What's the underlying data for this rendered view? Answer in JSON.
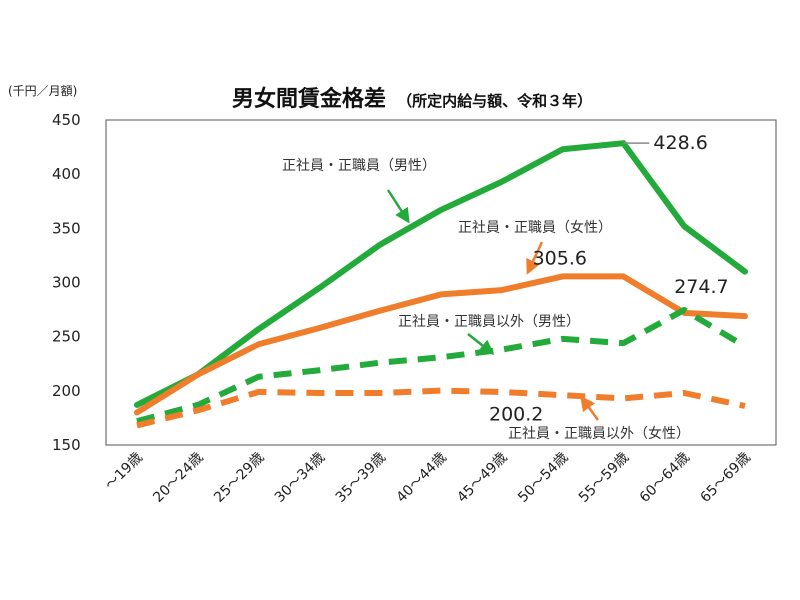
{
  "chart_data": {
    "type": "line",
    "title": "男女間賃金格差",
    "subtitle": "（所定内給与額、令和３年）",
    "ylabel": "(千円／月額)",
    "ylim": [
      150,
      450
    ],
    "yticks": [
      150,
      200,
      250,
      300,
      350,
      400,
      450
    ],
    "grid": false,
    "categories": [
      "～19歳",
      "20～24歳",
      "25～29歳",
      "30～34歳",
      "35～39歳",
      "40～44歳",
      "45～49歳",
      "50～54歳",
      "55～59歳",
      "60～64歳",
      "65～69歳"
    ],
    "series": [
      {
        "name": "正社員・正職員（男性）",
        "color": "#22aa3a",
        "dash": "solid",
        "values": [
          187,
          215,
          257,
          295,
          335,
          367,
          393,
          423,
          428.6,
          352,
          310
        ]
      },
      {
        "name": "正社員・正職員（女性）",
        "color": "#ef7d2b",
        "dash": "solid",
        "values": [
          180,
          215,
          243,
          258,
          274,
          289,
          293,
          305.6,
          305.6,
          272,
          269
        ]
      },
      {
        "name": "正社員・正職員以外（男性）",
        "color": "#22aa3a",
        "dash": "dashed",
        "values": [
          172,
          187,
          213,
          219,
          226,
          231,
          238,
          248,
          244,
          274.7,
          241
        ]
      },
      {
        "name": "正社員・正職員以外（女性）",
        "color": "#ef7d2b",
        "dash": "dashed",
        "values": [
          168,
          182,
          199,
          198,
          198,
          200.2,
          199,
          196,
          193,
          198,
          186
        ]
      }
    ],
    "annotations": [
      {
        "text": "428.6",
        "series": 0,
        "index": 8
      },
      {
        "text": "305.6",
        "series": 1,
        "index": 7
      },
      {
        "text": "274.7",
        "series": 2,
        "index": 9
      },
      {
        "text": "200.2",
        "series": 3,
        "index": 5
      }
    ]
  }
}
